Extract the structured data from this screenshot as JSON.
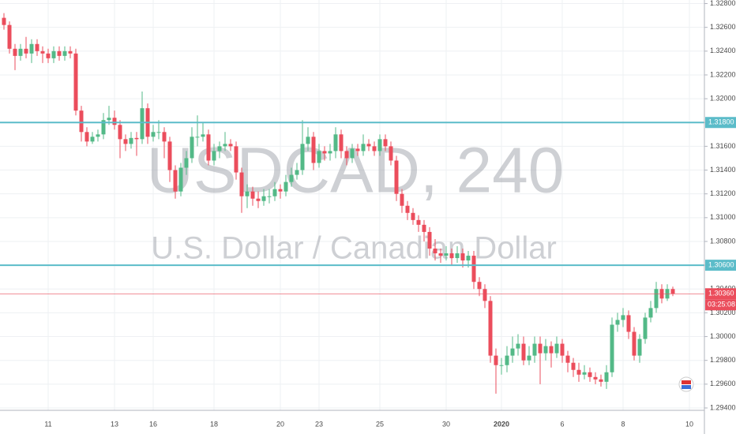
{
  "chart_data": {
    "type": "candlestick",
    "watermark_title": "USDCAD, 240",
    "watermark_subtitle": "U.S. Dollar / Canadian Dollar",
    "categories": [
      null,
      null,
      null,
      null,
      null,
      null,
      null,
      null,
      "11",
      null,
      null,
      null,
      null,
      null,
      null,
      null,
      null,
      null,
      null,
      null,
      "13",
      null,
      null,
      null,
      null,
      null,
      null,
      "16",
      null,
      null,
      null,
      null,
      null,
      null,
      null,
      null,
      null,
      null,
      "18",
      null,
      null,
      null,
      null,
      null,
      null,
      null,
      null,
      null,
      null,
      null,
      "20",
      null,
      null,
      null,
      null,
      null,
      null,
      "23",
      null,
      null,
      null,
      null,
      null,
      null,
      null,
      null,
      null,
      null,
      "25",
      null,
      null,
      null,
      null,
      null,
      null,
      null,
      null,
      null,
      null,
      null,
      "30",
      null,
      null,
      null,
      null,
      null,
      null,
      null,
      null,
      null,
      "2020",
      null,
      null,
      null,
      null,
      null,
      null,
      null,
      null,
      null,
      null,
      "6",
      null,
      null,
      null,
      null,
      null,
      null,
      null,
      null,
      null,
      null,
      "8",
      null,
      null,
      null,
      null,
      null,
      null,
      null,
      null,
      null,
      null,
      null,
      "10",
      null
    ],
    "open": [
      1.3268,
      1.3262,
      1.3242,
      1.3236,
      1.3242,
      1.3238,
      1.3246,
      1.324,
      1.3238,
      1.3234,
      1.324,
      1.3236,
      1.324,
      1.3238,
      1.319,
      1.3172,
      1.3164,
      1.3168,
      1.317,
      1.3182,
      1.3184,
      1.3178,
      1.3166,
      1.3162,
      1.3167,
      1.3166,
      1.3192,
      1.3168,
      1.3172,
      1.3172,
      1.3164,
      1.314,
      1.3122,
      1.3142,
      1.315,
      1.3168,
      1.3168,
      1.317,
      1.3148,
      1.3156,
      1.316,
      1.3162,
      1.316,
      1.3138,
      1.3118,
      1.3122,
      1.3116,
      1.3114,
      1.3118,
      1.3118,
      1.3124,
      1.3122,
      1.313,
      1.3136,
      1.314,
      1.3162,
      1.3168,
      1.3146,
      1.3156,
      1.3154,
      1.3156,
      1.317,
      1.3156,
      1.315,
      1.3158,
      1.3156,
      1.3162,
      1.316,
      1.3156,
      1.3166,
      1.316,
      1.3148,
      1.312,
      1.311,
      1.3104,
      1.3098,
      1.3094,
      1.3088,
      1.3074,
      1.307,
      1.3068,
      1.307,
      1.3066,
      1.307,
      1.3064,
      1.3068,
      1.3046,
      1.304,
      1.303,
      1.2984,
      1.2976,
      1.2976,
      1.2984,
      1.299,
      1.2994,
      1.298,
      1.2984,
      1.2994,
      1.2986,
      1.2992,
      1.2986,
      1.2994,
      1.2984,
      1.2978,
      1.2972,
      1.2968,
      1.297,
      1.2966,
      1.2964,
      1.2962,
      1.297,
      1.301,
      1.3014,
      1.3018,
      1.3004,
      1.2984,
      1.2998,
      1.3016,
      1.3024,
      1.304,
      1.3032,
      1.304,
      null,
      null,
      null,
      null
    ],
    "high": [
      1.3272,
      1.3265,
      1.3246,
      1.3246,
      1.3252,
      1.325,
      1.325,
      1.3244,
      1.3242,
      1.3244,
      1.3244,
      1.3244,
      1.3244,
      1.3242,
      1.3194,
      1.3176,
      1.3172,
      1.3174,
      1.3188,
      1.3194,
      1.319,
      1.3182,
      1.317,
      1.3172,
      1.3172,
      1.3206,
      1.3196,
      1.3178,
      1.3182,
      1.3176,
      1.3168,
      1.3144,
      1.3146,
      1.3156,
      1.3176,
      1.3186,
      1.318,
      1.3174,
      1.3162,
      1.3164,
      1.3172,
      1.3166,
      1.3164,
      1.3142,
      1.3128,
      1.3126,
      1.3122,
      1.3124,
      1.3124,
      1.313,
      1.3128,
      1.3136,
      1.3142,
      1.3146,
      1.3182,
      1.3176,
      1.3172,
      1.3162,
      1.316,
      1.3162,
      1.3176,
      1.3174,
      1.316,
      1.3162,
      1.3162,
      1.317,
      1.3166,
      1.3164,
      1.317,
      1.317,
      1.3164,
      1.3152,
      1.3124,
      1.3114,
      1.3108,
      1.3102,
      1.3098,
      1.3092,
      1.3082,
      1.3074,
      1.3076,
      1.3074,
      1.3076,
      1.3074,
      1.3072,
      1.3072,
      1.305,
      1.3044,
      1.3034,
      1.299,
      1.2982,
      1.2992,
      1.3,
      1.3002,
      1.3,
      1.2992,
      1.3,
      1.3,
      1.2998,
      1.2996,
      1.3,
      1.2998,
      1.2988,
      1.2982,
      1.2978,
      1.2976,
      1.2974,
      1.297,
      1.2968,
      1.2976,
      1.3016,
      1.302,
      1.3024,
      1.3022,
      1.3008,
      1.3002,
      1.302,
      1.303,
      1.3046,
      1.3044,
      1.3044,
      1.3042,
      null,
      null,
      null,
      null
    ],
    "low": [
      1.3258,
      1.3238,
      1.3224,
      1.3232,
      1.3234,
      1.323,
      1.3236,
      1.323,
      1.323,
      1.323,
      1.3232,
      1.3232,
      1.3234,
      1.3186,
      1.3164,
      1.316,
      1.3162,
      1.3164,
      1.3166,
      1.3178,
      1.3174,
      1.315,
      1.3156,
      1.3158,
      1.3152,
      1.3162,
      1.3162,
      1.3164,
      1.3166,
      1.315,
      1.313,
      1.3116,
      1.3118,
      1.3136,
      1.3146,
      1.316,
      1.3164,
      1.3144,
      1.3144,
      1.315,
      1.3156,
      1.3156,
      1.3132,
      1.3104,
      1.3108,
      1.311,
      1.3108,
      1.311,
      1.3112,
      1.3114,
      1.3116,
      1.3118,
      1.3126,
      1.3132,
      1.3136,
      1.3156,
      1.314,
      1.3142,
      1.3148,
      1.3148,
      1.315,
      1.315,
      1.3144,
      1.3146,
      1.3152,
      1.3152,
      1.3156,
      1.3152,
      1.3152,
      1.3156,
      1.3144,
      1.3114,
      1.3104,
      1.3098,
      1.3094,
      1.3088,
      1.308,
      1.3068,
      1.3064,
      1.3062,
      1.3064,
      1.306,
      1.3062,
      1.3058,
      1.3058,
      1.304,
      1.3034,
      1.3024,
      1.2978,
      1.2952,
      1.2968,
      1.297,
      1.2978,
      1.2984,
      1.2976,
      1.2976,
      1.2978,
      1.296,
      1.298,
      1.2974,
      1.2982,
      1.2978,
      1.297,
      1.2966,
      1.2962,
      1.2964,
      1.2962,
      1.296,
      1.2958,
      1.2956,
      1.2966,
      1.3004,
      1.3008,
      1.2998,
      1.298,
      1.2978,
      1.2994,
      1.3012,
      1.302,
      1.3028,
      1.303,
      1.3034,
      null,
      null,
      null,
      null
    ],
    "close": [
      1.3262,
      1.3242,
      1.3236,
      1.3242,
      1.3238,
      1.3246,
      1.324,
      1.3238,
      1.3234,
      1.324,
      1.3236,
      1.324,
      1.3238,
      1.319,
      1.3172,
      1.3164,
      1.3168,
      1.317,
      1.3182,
      1.3184,
      1.3178,
      1.3166,
      1.3162,
      1.3167,
      1.3166,
      1.3192,
      1.3168,
      1.3172,
      1.3172,
      1.3164,
      1.314,
      1.3122,
      1.3142,
      1.315,
      1.3168,
      1.3168,
      1.317,
      1.3148,
      1.3156,
      1.316,
      1.3162,
      1.316,
      1.3138,
      1.3118,
      1.3122,
      1.3116,
      1.3114,
      1.3118,
      1.3118,
      1.3124,
      1.3122,
      1.313,
      1.3136,
      1.314,
      1.3162,
      1.3168,
      1.3146,
      1.3156,
      1.3154,
      1.3156,
      1.317,
      1.3156,
      1.315,
      1.3158,
      1.3156,
      1.3162,
      1.316,
      1.3156,
      1.3166,
      1.316,
      1.3148,
      1.312,
      1.311,
      1.3104,
      1.3098,
      1.3094,
      1.3088,
      1.3074,
      1.307,
      1.3068,
      1.307,
      1.3066,
      1.307,
      1.3064,
      1.3068,
      1.3046,
      1.304,
      1.303,
      1.2984,
      1.2976,
      1.2976,
      1.2984,
      1.299,
      1.2994,
      1.298,
      1.2984,
      1.2994,
      1.2986,
      1.2992,
      1.2986,
      1.2994,
      1.2984,
      1.2978,
      1.2972,
      1.2968,
      1.297,
      1.2966,
      1.2964,
      1.2962,
      1.297,
      1.301,
      1.3014,
      1.3018,
      1.3004,
      1.2984,
      1.2998,
      1.3016,
      1.3024,
      1.304,
      1.3032,
      1.304,
      1.3036,
      null,
      null,
      null,
      null
    ],
    "up_color": "#53b987",
    "down_color": "#eb4d5c",
    "ylim": [
      1.2938,
      1.3283
    ],
    "yticks": [
      {
        "value": 1.294,
        "label": "1.29400"
      },
      {
        "value": 1.296,
        "label": "1.29600"
      },
      {
        "value": 1.298,
        "label": "1.29800"
      },
      {
        "value": 1.3,
        "label": "1.30000"
      },
      {
        "value": 1.302,
        "label": "1.30200"
      },
      {
        "value": 1.304,
        "label": "1.30400"
      },
      {
        "value": 1.306,
        "label": "1.30600"
      },
      {
        "value": 1.308,
        "label": "1.30800"
      },
      {
        "value": 1.31,
        "label": "1.31000"
      },
      {
        "value": 1.312,
        "label": "1.31200"
      },
      {
        "value": 1.314,
        "label": "1.31400"
      },
      {
        "value": 1.316,
        "label": "1.31600"
      },
      {
        "value": 1.318,
        "label": "1.31800"
      },
      {
        "value": 1.32,
        "label": "1.32000"
      },
      {
        "value": 1.322,
        "label": "1.32200"
      },
      {
        "value": 1.324,
        "label": "1.32400"
      },
      {
        "value": 1.326,
        "label": "1.32600"
      },
      {
        "value": 1.328,
        "label": "1.32800"
      }
    ],
    "grid": true,
    "levels": [
      {
        "value": 1.318,
        "label": "1.31800",
        "color": "#5bbcc9"
      },
      {
        "value": 1.306,
        "label": "1.30600",
        "color": "#5bbcc9"
      }
    ],
    "last_price": {
      "value": 1.3036,
      "label": "1.30360",
      "color": "#eb4d5c"
    },
    "countdown": "03:25:08"
  }
}
